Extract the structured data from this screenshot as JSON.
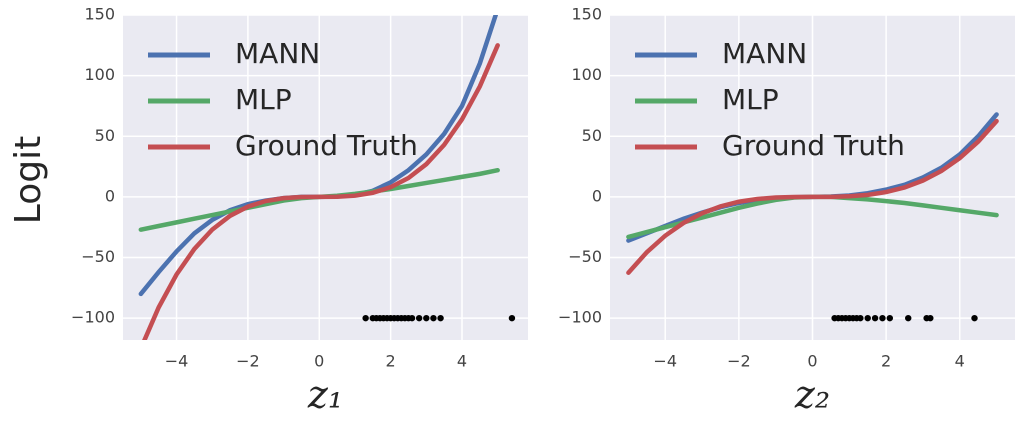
{
  "chart_data": [
    {
      "type": "line",
      "ylabel": "Logit",
      "xlabel": "z₁",
      "x": [
        -5,
        -4.5,
        -4,
        -3.5,
        -3,
        -2.5,
        -2,
        -1.5,
        -1,
        -0.5,
        0,
        0.5,
        1,
        1.5,
        2,
        2.5,
        3,
        3.5,
        4,
        4.5,
        5
      ],
      "series": [
        {
          "name": "MANN",
          "color": "#4c72b0",
          "values": [
            -80,
            -62,
            -45,
            -30,
            -19,
            -11,
            -6,
            -3,
            -1,
            0,
            0,
            0.3,
            1.5,
            5,
            12,
            22,
            35,
            52,
            75,
            110,
            155
          ]
        },
        {
          "name": "MLP",
          "color": "#55a868",
          "values": [
            -27,
            -24,
            -21,
            -18,
            -15,
            -12,
            -9,
            -6,
            -3,
            -1,
            0,
            1,
            2.5,
            4.5,
            6.5,
            9,
            11.5,
            14,
            16.5,
            19,
            22
          ]
        },
        {
          "name": "Ground Truth",
          "color": "#c44e52",
          "values": [
            -125,
            -91.1,
            -64,
            -42.9,
            -27,
            -15.6,
            -8,
            -3.4,
            -1,
            -0.1,
            0,
            0.1,
            1,
            3.4,
            8,
            15.6,
            27,
            42.9,
            64,
            91.1,
            125
          ]
        }
      ],
      "points": {
        "color": "#000000",
        "x": [
          1.3,
          1.5,
          1.6,
          1.7,
          1.8,
          1.9,
          2.0,
          2.1,
          2.2,
          2.3,
          2.4,
          2.5,
          2.6,
          2.8,
          3.0,
          3.2,
          3.4,
          5.4
        ],
        "y": [
          -100,
          -100,
          -100,
          -100,
          -100,
          -100,
          -100,
          -100,
          -100,
          -100,
          -100,
          -100,
          -100,
          -100,
          -100,
          -100,
          -100,
          -100
        ]
      },
      "xlim": [
        -5.5,
        5.85
      ],
      "ylim": [
        -118,
        150
      ],
      "xticks": [
        {
          "value": -4,
          "label": "−4"
        },
        {
          "value": -2,
          "label": "−2"
        },
        0,
        2,
        4
      ],
      "yticks": [
        {
          "value": -100,
          "label": "−100"
        },
        {
          "value": -50,
          "label": "−50"
        },
        0,
        50,
        100,
        150
      ],
      "grid": true,
      "legend": "upper left"
    },
    {
      "type": "line",
      "xlabel": "z₂",
      "x": [
        -5,
        -4.5,
        -4,
        -3.5,
        -3,
        -2.5,
        -2,
        -1.5,
        -1,
        -0.5,
        0,
        0.5,
        1,
        1.5,
        2,
        2.5,
        3,
        3.5,
        4,
        4.5,
        5
      ],
      "series": [
        {
          "name": "MANN",
          "color": "#4c72b0",
          "values": [
            -36,
            -30,
            -24,
            -18,
            -13,
            -8.5,
            -5,
            -2.5,
            -1,
            -0.3,
            0,
            0.3,
            1.2,
            3,
            6,
            10,
            16,
            24,
            35,
            50,
            68
          ]
        },
        {
          "name": "MLP",
          "color": "#55a868",
          "values": [
            -33,
            -29,
            -25,
            -21,
            -17,
            -13,
            -9,
            -5.5,
            -2.5,
            -0.5,
            0,
            0,
            -1,
            -2,
            -3.5,
            -5,
            -7,
            -9,
            -11,
            -13,
            -15
          ]
        },
        {
          "name": "Ground Truth",
          "color": "#c44e52",
          "values": [
            -62.5,
            -45.6,
            -32,
            -21.4,
            -13.5,
            -7.8,
            -4,
            -1.7,
            -0.5,
            -0.06,
            0,
            0.06,
            0.5,
            1.7,
            4,
            7.8,
            13.5,
            21.4,
            32,
            45.6,
            62.5
          ]
        }
      ],
      "points": {
        "color": "#000000",
        "x": [
          0.6,
          0.7,
          0.8,
          0.9,
          1.0,
          1.1,
          1.2,
          1.3,
          1.5,
          1.7,
          1.9,
          2.1,
          2.6,
          3.1,
          3.2,
          4.4
        ],
        "y": [
          -100,
          -100,
          -100,
          -100,
          -100,
          -100,
          -100,
          -100,
          -100,
          -100,
          -100,
          -100,
          -100,
          -100,
          -100,
          -100
        ]
      },
      "xlim": [
        -5.5,
        5.5
      ],
      "ylim": [
        -118,
        150
      ],
      "xticks": [
        {
          "value": -4,
          "label": "−4"
        },
        {
          "value": -2,
          "label": "−2"
        },
        0,
        2,
        4
      ],
      "yticks": [
        {
          "value": -100,
          "label": "−100"
        },
        {
          "value": -50,
          "label": "−50"
        },
        0,
        50,
        100,
        150
      ],
      "grid": true,
      "legend": "upper left"
    }
  ]
}
